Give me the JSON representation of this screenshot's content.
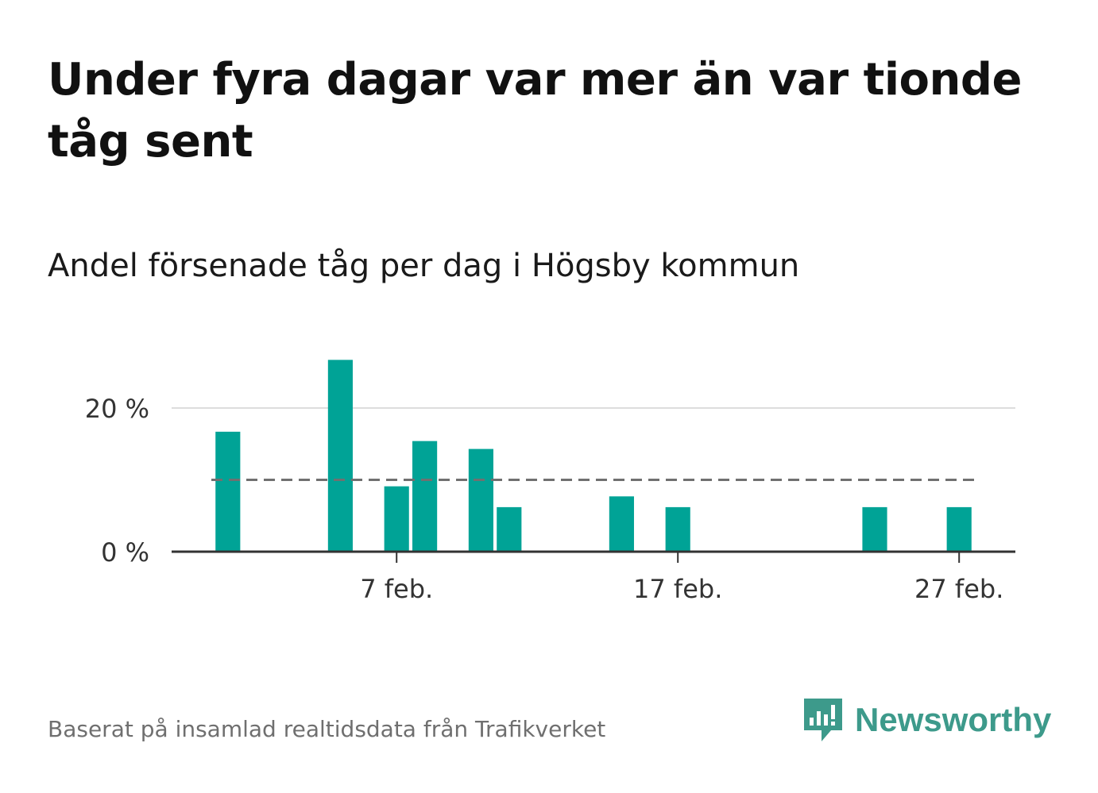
{
  "title": "Under fyra dagar var mer än var tionde tåg sent",
  "subtitle": "Andel försenade tåg per dag i Högsby kommun",
  "footer": "Baserat på insamlad realtidsdata från Trafikverket",
  "brand": {
    "name": "Newsworthy",
    "icon": "newsworthy-logo-icon"
  },
  "colors": {
    "bar": "#00a396",
    "reference_line": "#707070",
    "grid": "#dddddd",
    "axis": "#333333"
  },
  "chart_data": {
    "type": "bar",
    "ylabel": "",
    "xlabel": "",
    "ylim": [
      0,
      27
    ],
    "yticks": [
      {
        "value": 0,
        "label": "0 %"
      },
      {
        "value": 20,
        "label": "20 %"
      }
    ],
    "xticks": [
      {
        "value": "2024-02-07",
        "label": "7 feb."
      },
      {
        "value": "2024-02-17",
        "label": "17 feb."
      },
      {
        "value": "2024-02-27",
        "label": "27 feb."
      }
    ],
    "x_range": [
      "2024-01-30",
      "2024-02-29"
    ],
    "reference_line": {
      "value": 10,
      "style": "dashed"
    },
    "grid": true,
    "bars": [
      {
        "x": "2024-02-01",
        "value": 16.7
      },
      {
        "x": "2024-02-05",
        "value": 26.7
      },
      {
        "x": "2024-02-07",
        "value": 9.1
      },
      {
        "x": "2024-02-08",
        "value": 15.4
      },
      {
        "x": "2024-02-10",
        "value": 14.3
      },
      {
        "x": "2024-02-11",
        "value": 6.2
      },
      {
        "x": "2024-02-15",
        "value": 7.7
      },
      {
        "x": "2024-02-17",
        "value": 6.2
      },
      {
        "x": "2024-02-24",
        "value": 6.2
      },
      {
        "x": "2024-02-27",
        "value": 6.2
      }
    ]
  }
}
